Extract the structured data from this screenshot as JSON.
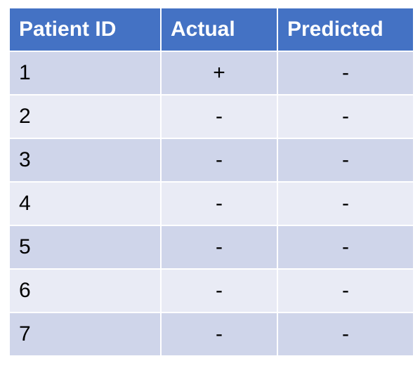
{
  "table": {
    "headers": [
      "Patient ID",
      "Actual",
      "Predicted"
    ],
    "rows": [
      {
        "id": "1",
        "actual": "+",
        "predicted": "-"
      },
      {
        "id": "2",
        "actual": "-",
        "predicted": "-"
      },
      {
        "id": "3",
        "actual": "-",
        "predicted": "-"
      },
      {
        "id": "4",
        "actual": "-",
        "predicted": "-"
      },
      {
        "id": "5",
        "actual": "-",
        "predicted": "-"
      },
      {
        "id": "6",
        "actual": "-",
        "predicted": "-"
      },
      {
        "id": "7",
        "actual": "-",
        "predicted": "-"
      }
    ]
  },
  "colors": {
    "header_bg": "#4472c4",
    "row_odd_bg": "#cfd5ea",
    "row_even_bg": "#e9ebf5"
  }
}
